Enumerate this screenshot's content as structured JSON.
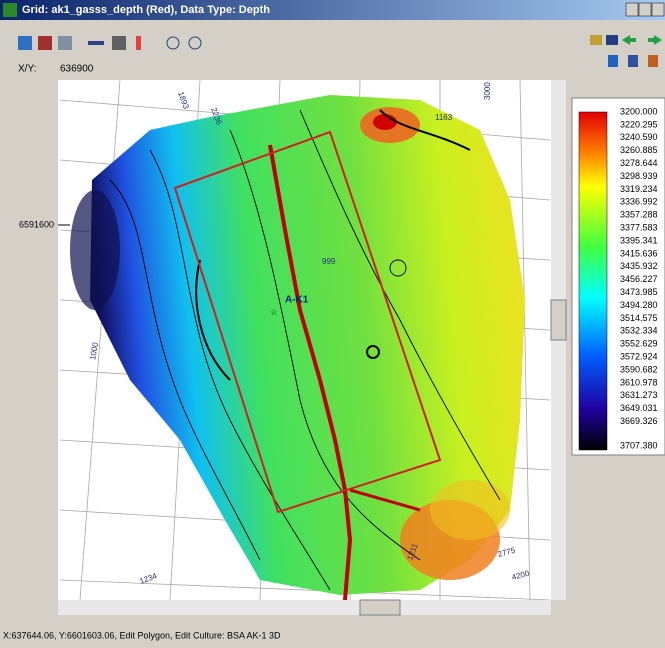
{
  "window": {
    "title": "Grid: ak1_gasss_depth (Red), Data Type: Depth"
  },
  "toolbar": {
    "xy_label": "X/Y:",
    "xy_value": "636900"
  },
  "map": {
    "y_label": "6591600",
    "well": "A-K1",
    "contour_labels": [
      "1893",
      "2236",
      "1163",
      "3000",
      "999",
      "2775",
      "4200",
      "1234",
      "1000",
      "1211"
    ]
  },
  "colorbar": {
    "labels": [
      "3200.000",
      "3220.295",
      "3240.590",
      "3260.885",
      "3278.644",
      "3298.939",
      "3319.234",
      "3336.992",
      "3357.288",
      "3377.583",
      "3395.341",
      "3415.636",
      "3435.932",
      "3456.227",
      "3473.985",
      "3494.280",
      "3514.575",
      "3532.334",
      "3552.629",
      "3572.924",
      "3590.682",
      "3610.978",
      "3631.273",
      "3649.031",
      "3669.326",
      "3707.380"
    ]
  },
  "status": {
    "text": "X:637644.06, Y:6601603.06, Edit Polygon, Edit Culture: BSA AK-1 3D"
  }
}
